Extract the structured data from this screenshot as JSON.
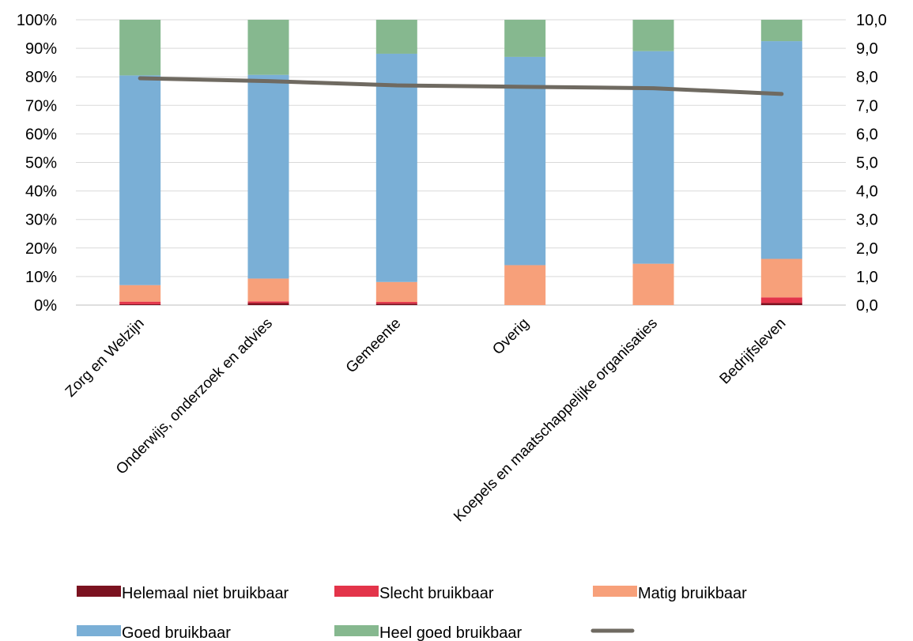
{
  "chart_data": {
    "type": "bar",
    "stacked": true,
    "categories": [
      "Zorg en Welzijn",
      "Onderwijs, onderzoek en advies",
      "Gemeente",
      "Overig",
      "Koepels en maatschappelijke organisaties",
      "Bedrijfsleven"
    ],
    "series": [
      {
        "name": "Helemaal niet bruikbaar",
        "color": "#7b1220",
        "values": [
          0.3,
          0.7,
          0.5,
          0.0,
          0.0,
          0.7
        ]
      },
      {
        "name": "Slecht bruikbaar",
        "color": "#e3344a",
        "values": [
          0.9,
          0.6,
          0.6,
          0.0,
          0.0,
          2.0
        ]
      },
      {
        "name": "Matig bruikbaar",
        "color": "#f7a07a",
        "values": [
          5.8,
          8.0,
          7.0,
          14.0,
          14.5,
          13.5
        ]
      },
      {
        "name": "Goed bruikbaar",
        "color": "#7aafd6",
        "values": [
          73.5,
          71.4,
          80.0,
          73.0,
          74.5,
          76.3
        ]
      },
      {
        "name": "Heel goed bruikbaar",
        "color": "#86b88f",
        "values": [
          19.5,
          19.3,
          11.9,
          13.0,
          11.0,
          7.5
        ]
      }
    ],
    "line_series": {
      "name": "",
      "color": "#6f6a61",
      "axis": "right",
      "values": [
        7.95,
        7.85,
        7.7,
        7.65,
        7.6,
        7.4
      ]
    },
    "ylim": [
      0,
      100
    ],
    "y2lim": [
      0,
      10
    ],
    "yticks": [
      "0%",
      "10%",
      "20%",
      "30%",
      "40%",
      "50%",
      "60%",
      "70%",
      "80%",
      "90%",
      "100%"
    ],
    "y2ticks": [
      "0,0",
      "1,0",
      "2,0",
      "3,0",
      "4,0",
      "5,0",
      "6,0",
      "7,0",
      "8,0",
      "9,0",
      "10,0"
    ],
    "grid": true,
    "legend_position": "bottom",
    "title": "",
    "xlabel": "",
    "ylabel": ""
  }
}
